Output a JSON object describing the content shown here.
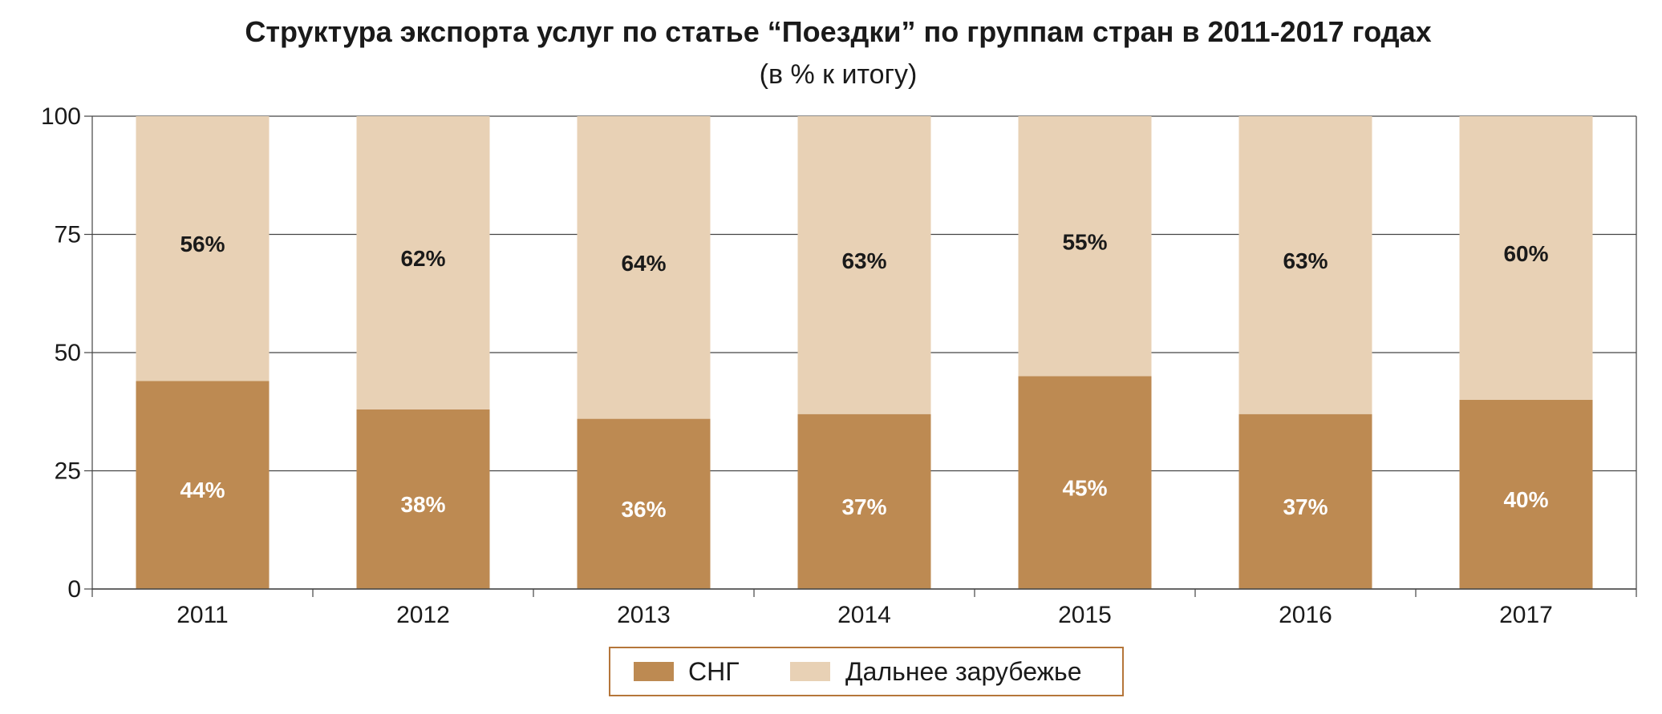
{
  "chart_data": {
    "type": "bar",
    "stacked": true,
    "title": "Структура экспорта услуг по статье “Поездки” по группам стран в 2011-2017 годах",
    "subtitle": "(в % к итогу)",
    "xlabel": "",
    "ylabel": "",
    "categories": [
      "2011",
      "2012",
      "2013",
      "2014",
      "2015",
      "2016",
      "2017"
    ],
    "ylim": [
      0,
      100
    ],
    "yticks": [
      "0",
      "25",
      "50",
      "75",
      "100"
    ],
    "grid": true,
    "legend_position": "bottom",
    "series": [
      {
        "name": "СНГ",
        "color": "#bd8a52",
        "label_color": "#ffffff",
        "values": [
          44,
          38,
          36,
          37,
          45,
          37,
          40
        ],
        "labels": [
          "44%",
          "38%",
          "36%",
          "37%",
          "45%",
          "37%",
          "40%"
        ]
      },
      {
        "name": "Дальнее зарубежье",
        "color": "#e8d1b5",
        "label_color": "#1a1a1a",
        "values": [
          56,
          62,
          64,
          63,
          55,
          63,
          60
        ],
        "labels": [
          "56%",
          "62%",
          "64%",
          "63%",
          "55%",
          "63%",
          "60%"
        ]
      }
    ],
    "colors": {
      "grid": "#444444",
      "legend_border": "#b5763a"
    }
  }
}
